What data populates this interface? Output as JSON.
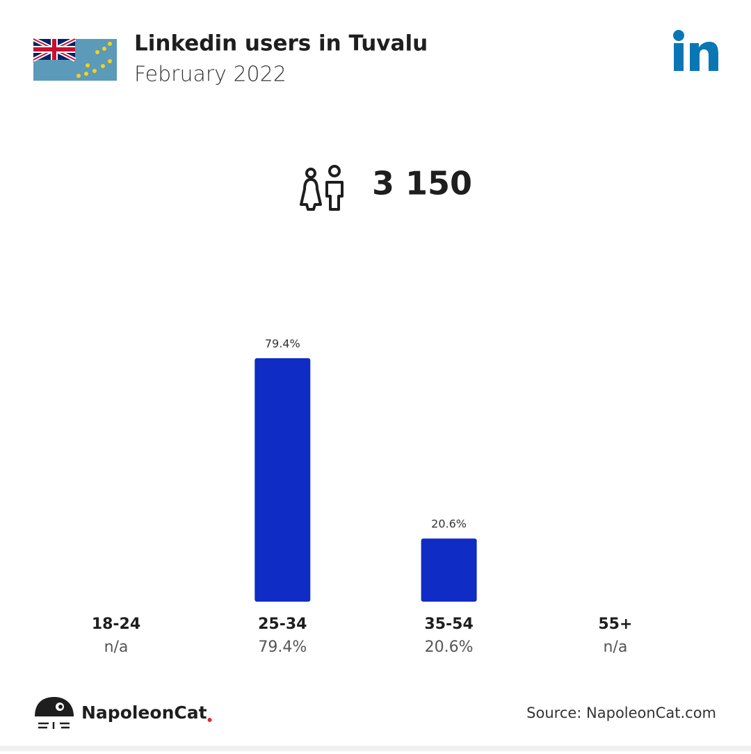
{
  "chart_data": {
    "type": "bar",
    "title": "Linkedin users in Tuvalu",
    "subtitle": "February 2022",
    "total_users": "3 150",
    "categories": [
      "18-24",
      "25-34",
      "35-54",
      "55+"
    ],
    "values": [
      null,
      79.4,
      20.6,
      null
    ],
    "value_labels": [
      "n/a",
      "79.4%",
      "20.6%",
      "n/a"
    ],
    "color": "#0f2cc4",
    "brand": "NapoleonCat",
    "source": "Source: NapoleonCat.com"
  }
}
